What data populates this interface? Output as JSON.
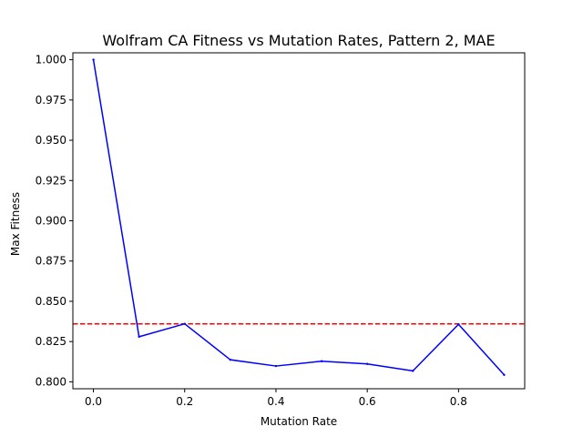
{
  "chart_data": {
    "type": "line",
    "title": "Wolfram CA Fitness vs Mutation Rates, Pattern 2, MAE",
    "xlabel": "Mutation Rate",
    "ylabel": "Max Fitness",
    "x": [
      0.0,
      0.1,
      0.2,
      0.3,
      0.4,
      0.5,
      0.6,
      0.7,
      0.8,
      0.9
    ],
    "series": [
      {
        "values": [
          1.0,
          0.828,
          0.836,
          0.8137,
          0.8098,
          0.8128,
          0.8111,
          0.8068,
          0.8357,
          0.8043
        ],
        "color": "#0000ff",
        "style": "solid"
      }
    ],
    "reference_lines": [
      {
        "y": 0.836,
        "color": "#ff0000",
        "style": "dashed"
      }
    ],
    "xlim": [
      -0.045,
      0.945
    ],
    "ylim": [
      0.7957,
      1.0043
    ],
    "xticks": [
      0.0,
      0.2,
      0.4,
      0.6,
      0.8
    ],
    "xtick_labels": [
      "0.0",
      "0.2",
      "0.4",
      "0.6",
      "0.8"
    ],
    "yticks": [
      0.8,
      0.825,
      0.85,
      0.875,
      0.9,
      0.925,
      0.95,
      0.975,
      1.0
    ],
    "ytick_labels": [
      "0.800",
      "0.825",
      "0.850",
      "0.875",
      "0.900",
      "0.925",
      "0.950",
      "0.975",
      "1.000"
    ],
    "grid": false,
    "legend": "none"
  }
}
